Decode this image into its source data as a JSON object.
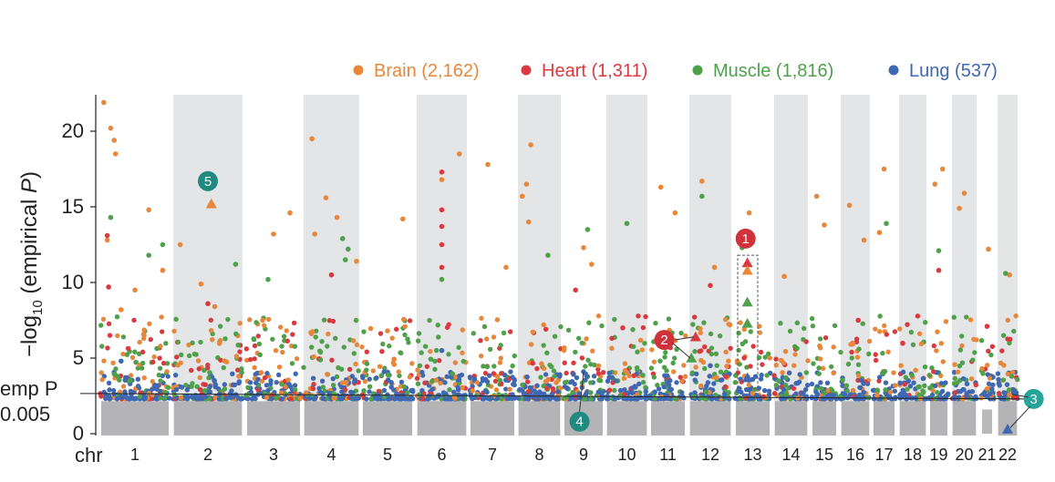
{
  "chart_data": {
    "type": "scatter",
    "subtype": "manhattan",
    "title": "",
    "ylabel": {
      "prefix": "−log",
      "sub": "10",
      "open": " (empirical ",
      "var": "P",
      "close": ")"
    },
    "xlabel": "chr",
    "ylim": [
      0,
      22
    ],
    "yticks": [
      0,
      5,
      10,
      15,
      20
    ],
    "threshold": {
      "line1": "emp P",
      "line2": "0.005",
      "value": 2.3
    },
    "chromosomes": [
      "1",
      "2",
      "3",
      "4",
      "5",
      "6",
      "7",
      "8",
      "9",
      "10",
      "11",
      "12",
      "13",
      "14",
      "15",
      "16",
      "17",
      "18",
      "19",
      "20",
      "21",
      "22"
    ],
    "shaded_chromosomes": [
      "2",
      "4",
      "6",
      "8",
      "10",
      "12",
      "14",
      "16",
      "18",
      "20",
      "22"
    ],
    "legend": {
      "placement": "top-right",
      "items": [
        {
          "label": "Brain (2,162)",
          "color": "#e8873a"
        },
        {
          "label": "Heart (1,311)",
          "color": "#d93a3f"
        },
        {
          "label": "Muscle (1,816)",
          "color": "#4ea04a"
        },
        {
          "label": "Lung (537)",
          "color": "#3e68b2"
        }
      ]
    },
    "series": [
      {
        "name": "Brain",
        "color": "#e8873a",
        "points": [
          {
            "chr": "1",
            "pos": 0.05,
            "y": 21.9
          },
          {
            "chr": "1",
            "pos": 0.15,
            "y": 20.2
          },
          {
            "chr": "1",
            "pos": 0.2,
            "y": 19.4
          },
          {
            "chr": "1",
            "pos": 0.22,
            "y": 18.5
          },
          {
            "chr": "1",
            "pos": 0.1,
            "y": 12.8
          },
          {
            "chr": "1",
            "pos": 0.7,
            "y": 14.8
          },
          {
            "chr": "1",
            "pos": 0.9,
            "y": 10.8
          },
          {
            "chr": "1",
            "pos": 0.5,
            "y": 9.5
          },
          {
            "chr": "1",
            "pos": 0.3,
            "y": 8.2
          },
          {
            "chr": "2",
            "pos": 0.1,
            "y": 12.5
          },
          {
            "chr": "2",
            "pos": 0.4,
            "y": 9.9
          },
          {
            "chr": "2",
            "pos": 0.6,
            "y": 8.4
          },
          {
            "chr": "3",
            "pos": 0.5,
            "y": 13.2
          },
          {
            "chr": "3",
            "pos": 0.8,
            "y": 14.6
          },
          {
            "chr": "3",
            "pos": 0.3,
            "y": 7.5
          },
          {
            "chr": "4",
            "pos": 0.15,
            "y": 19.5
          },
          {
            "chr": "4",
            "pos": 0.4,
            "y": 15.6
          },
          {
            "chr": "4",
            "pos": 0.6,
            "y": 14.3
          },
          {
            "chr": "4",
            "pos": 0.2,
            "y": 13.2
          },
          {
            "chr": "4",
            "pos": 0.95,
            "y": 11.4
          },
          {
            "chr": "5",
            "pos": 0.8,
            "y": 14.2
          },
          {
            "chr": "5",
            "pos": 0.5,
            "y": 6.8
          },
          {
            "chr": "6",
            "pos": 0.5,
            "y": 16.8
          },
          {
            "chr": "6",
            "pos": 0.85,
            "y": 18.5
          },
          {
            "chr": "7",
            "pos": 0.4,
            "y": 17.8
          },
          {
            "chr": "7",
            "pos": 0.8,
            "y": 11.0
          },
          {
            "chr": "8",
            "pos": 0.1,
            "y": 15.7
          },
          {
            "chr": "8",
            "pos": 0.3,
            "y": 19.1
          },
          {
            "chr": "8",
            "pos": 0.2,
            "y": 16.5
          },
          {
            "chr": "8",
            "pos": 0.25,
            "y": 14.0
          },
          {
            "chr": "9",
            "pos": 0.5,
            "y": 12.3
          },
          {
            "chr": "9",
            "pos": 0.7,
            "y": 11.2
          },
          {
            "chr": "11",
            "pos": 0.3,
            "y": 16.3
          },
          {
            "chr": "11",
            "pos": 0.7,
            "y": 14.6
          },
          {
            "chr": "12",
            "pos": 0.3,
            "y": 16.7
          },
          {
            "chr": "12",
            "pos": 0.6,
            "y": 11.0
          },
          {
            "chr": "13",
            "pos": 0.4,
            "y": 14.6
          },
          {
            "chr": "14",
            "pos": 0.3,
            "y": 10.4
          },
          {
            "chr": "15",
            "pos": 0.2,
            "y": 15.7
          },
          {
            "chr": "15",
            "pos": 0.5,
            "y": 13.8
          },
          {
            "chr": "16",
            "pos": 0.3,
            "y": 15.1
          },
          {
            "chr": "16",
            "pos": 0.8,
            "y": 12.8
          },
          {
            "chr": "17",
            "pos": 0.5,
            "y": 17.5
          },
          {
            "chr": "17",
            "pos": 0.3,
            "y": 13.3
          },
          {
            "chr": "19",
            "pos": 0.3,
            "y": 16.5
          },
          {
            "chr": "19",
            "pos": 0.7,
            "y": 17.5
          },
          {
            "chr": "20",
            "pos": 0.5,
            "y": 15.9
          },
          {
            "chr": "20",
            "pos": 0.3,
            "y": 14.9
          },
          {
            "chr": "21",
            "pos": 0.6,
            "y": 12.2
          },
          {
            "chr": "22",
            "pos": 0.6,
            "y": 10.5
          }
        ]
      },
      {
        "name": "Heart",
        "color": "#d93a3f",
        "points": [
          {
            "chr": "1",
            "pos": 0.1,
            "y": 13.1
          },
          {
            "chr": "1",
            "pos": 0.12,
            "y": 9.7
          },
          {
            "chr": "2",
            "pos": 0.5,
            "y": 8.6
          },
          {
            "chr": "4",
            "pos": 0.5,
            "y": 10.5
          },
          {
            "chr": "6",
            "pos": 0.5,
            "y": 17.3
          },
          {
            "chr": "6",
            "pos": 0.5,
            "y": 14.8
          },
          {
            "chr": "6",
            "pos": 0.5,
            "y": 13.7
          },
          {
            "chr": "6",
            "pos": 0.5,
            "y": 12.5
          },
          {
            "chr": "6",
            "pos": 0.5,
            "y": 11.0
          },
          {
            "chr": "9",
            "pos": 0.3,
            "y": 9.5
          },
          {
            "chr": "10",
            "pos": 0.4,
            "y": 7.0
          },
          {
            "chr": "12",
            "pos": 0.5,
            "y": 9.8
          },
          {
            "chr": "16",
            "pos": 0.6,
            "y": 7.5
          },
          {
            "chr": "19",
            "pos": 0.5,
            "y": 10.8
          },
          {
            "chr": "21",
            "pos": 0.5,
            "y": 7.1
          }
        ]
      },
      {
        "name": "Muscle",
        "color": "#4ea04a",
        "points": [
          {
            "chr": "1",
            "pos": 0.15,
            "y": 14.3
          },
          {
            "chr": "1",
            "pos": 0.9,
            "y": 12.5
          },
          {
            "chr": "1",
            "pos": 0.7,
            "y": 11.8
          },
          {
            "chr": "2",
            "pos": 0.9,
            "y": 11.2
          },
          {
            "chr": "3",
            "pos": 0.4,
            "y": 10.2
          },
          {
            "chr": "4",
            "pos": 0.7,
            "y": 12.9
          },
          {
            "chr": "4",
            "pos": 0.8,
            "y": 12.2
          },
          {
            "chr": "4",
            "pos": 0.75,
            "y": 11.5
          },
          {
            "chr": "6",
            "pos": 0.5,
            "y": 10.2
          },
          {
            "chr": "8",
            "pos": 0.7,
            "y": 11.8
          },
          {
            "chr": "9",
            "pos": 0.6,
            "y": 13.5
          },
          {
            "chr": "10",
            "pos": 0.5,
            "y": 13.9
          },
          {
            "chr": "12",
            "pos": 0.3,
            "y": 15.7
          },
          {
            "chr": "13",
            "pos": 0.2,
            "y": 12.3
          },
          {
            "chr": "17",
            "pos": 0.6,
            "y": 13.9
          },
          {
            "chr": "19",
            "pos": 0.5,
            "y": 12.1
          },
          {
            "chr": "22",
            "pos": 0.4,
            "y": 10.6
          }
        ]
      },
      {
        "name": "Lung",
        "color": "#3e68b2",
        "points": [
          {
            "chr": "1",
            "pos": 0.3,
            "y": 4.8
          },
          {
            "chr": "6",
            "pos": 0.5,
            "y": 5.5
          },
          {
            "chr": "9",
            "pos": 0.5,
            "y": 4.1
          },
          {
            "chr": "12",
            "pos": 0.5,
            "y": 4.5
          },
          {
            "chr": "13",
            "pos": 0.5,
            "y": 3.6
          },
          {
            "chr": "22",
            "pos": 0.5,
            "y": 0.3
          }
        ]
      }
    ],
    "highlighted": [
      {
        "chr": "2",
        "pos": 0.55,
        "y": 15.2,
        "color": "#e8873a",
        "shape": "triangle"
      },
      {
        "chr": "13",
        "pos": 0.35,
        "y": 11.3,
        "color": "#d93a3f",
        "shape": "triangle"
      },
      {
        "chr": "13",
        "pos": 0.35,
        "y": 10.8,
        "color": "#e8873a",
        "shape": "triangle"
      },
      {
        "chr": "13",
        "pos": 0.35,
        "y": 8.7,
        "color": "#4ea04a",
        "shape": "triangle"
      },
      {
        "chr": "13",
        "pos": 0.35,
        "y": 7.3,
        "color": "#4ea04a",
        "shape": "triangle"
      },
      {
        "chr": "13",
        "pos": 0.35,
        "y": 3.7,
        "color": "#3e68b2",
        "shape": "triangle"
      },
      {
        "chr": "12",
        "pos": 0.15,
        "y": 6.4,
        "color": "#d93a3f",
        "shape": "triangle"
      },
      {
        "chr": "12",
        "pos": 0.05,
        "y": 5.0,
        "color": "#4ea04a",
        "shape": "triangle"
      },
      {
        "chr": "22",
        "pos": 0.5,
        "y": 0.3,
        "color": "#3e68b2",
        "shape": "triangle"
      }
    ],
    "annotations": [
      {
        "label": "1",
        "chr": "13",
        "pos": 0.3,
        "y": 12.9,
        "color": "#d0313b"
      },
      {
        "label": "2",
        "chr": "11",
        "pos": 0.4,
        "y": 6.2,
        "color": "#d0313b"
      },
      {
        "label": "3",
        "chr": "22",
        "pos": 1.8,
        "y": 2.3,
        "color": "#27a49a"
      },
      {
        "label": "4",
        "chr": "9",
        "pos": 0.4,
        "y": 0.8,
        "color": "#1f8a80"
      },
      {
        "label": "5",
        "chr": "2",
        "pos": 0.5,
        "y": 16.7,
        "color": "#1f8a80"
      }
    ]
  }
}
